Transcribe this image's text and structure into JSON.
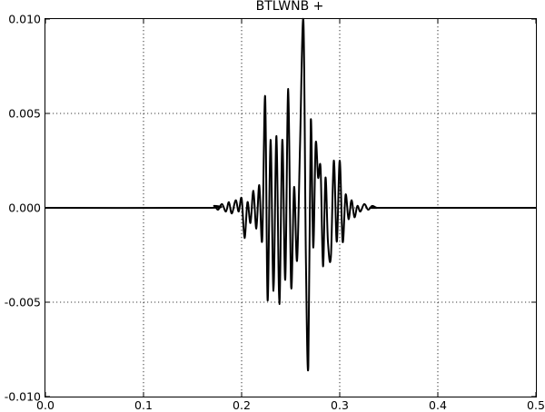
{
  "chart_data": {
    "type": "line",
    "title": "BTLWNB +",
    "xlabel": "",
    "ylabel": "",
    "xlim": [
      0.0,
      0.5
    ],
    "ylim": [
      -0.01,
      0.01
    ],
    "x_ticks": [
      0.0,
      0.1,
      0.2,
      0.3,
      0.4,
      0.5
    ],
    "x_tick_labels": [
      "0.0",
      "0.1",
      "0.2",
      "0.3",
      "0.4",
      "0.5"
    ],
    "y_ticks": [
      0.01,
      0.005,
      0.0,
      -0.005,
      -0.01
    ],
    "y_tick_labels": [
      "0.010",
      "0.005",
      "0.000",
      "-0.005",
      "-0.010"
    ],
    "grid": true,
    "series": [
      {
        "color": "#000000",
        "x": [
          0.0,
          0.165,
          0.172,
          0.176,
          0.18,
          0.184,
          0.187,
          0.19,
          0.194,
          0.197,
          0.2,
          0.203,
          0.206,
          0.209,
          0.212,
          0.215,
          0.218,
          0.221,
          0.224,
          0.2265,
          0.2295,
          0.2325,
          0.2355,
          0.2385,
          0.2415,
          0.2445,
          0.2475,
          0.2505,
          0.2535,
          0.2565,
          0.2595,
          0.263,
          0.2655,
          0.268,
          0.2705,
          0.273,
          0.2755,
          0.278,
          0.2805,
          0.283,
          0.2855,
          0.288,
          0.291,
          0.294,
          0.297,
          0.3,
          0.303,
          0.306,
          0.309,
          0.312,
          0.315,
          0.318,
          0.321,
          0.325,
          0.329,
          0.333,
          0.338,
          0.345,
          0.5
        ],
        "y": [
          0.0,
          0.0,
          0.0001,
          -0.0001,
          0.0002,
          -0.0002,
          0.0003,
          -0.0003,
          0.0004,
          -0.0002,
          0.0005,
          -0.0016,
          0.0003,
          -0.0008,
          0.0009,
          -0.0011,
          0.0012,
          -0.0017,
          0.0059,
          -0.0049,
          0.0036,
          -0.0044,
          0.0038,
          -0.0051,
          0.0036,
          -0.0038,
          0.0063,
          -0.0042,
          0.0011,
          -0.0028,
          0.0032,
          0.0099,
          -0.0026,
          -0.0084,
          0.0046,
          -0.0021,
          0.0034,
          0.0016,
          0.0021,
          -0.0031,
          0.0016,
          -0.0018,
          -0.0026,
          0.0025,
          -0.0018,
          0.0025,
          -0.0018,
          0.0007,
          -0.0006,
          0.0004,
          -0.0005,
          0.0001,
          -0.0002,
          0.0002,
          -0.0001,
          0.0001,
          0.0,
          0.0,
          0.0
        ]
      }
    ]
  }
}
